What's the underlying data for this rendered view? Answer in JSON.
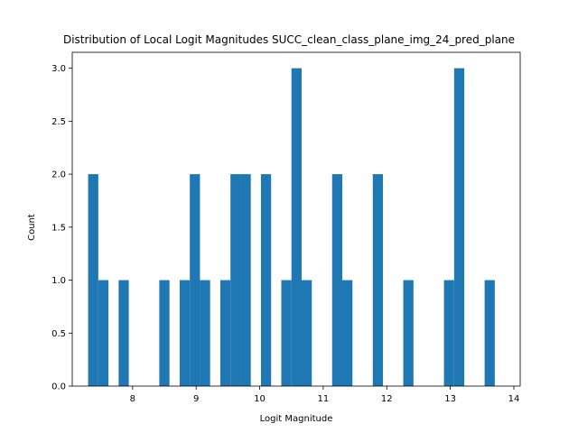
{
  "chart_data": {
    "type": "bar",
    "title": "Distribution of Local Logit Magnitudes SUCC_clean_class_plane_img_24_pred_plane",
    "xlabel": "Logit Magnitude",
    "ylabel": "Count",
    "xlim": [
      7.05,
      14.1
    ],
    "ylim": [
      0,
      3.15
    ],
    "grid": false,
    "color": "#1f77b4",
    "bin_width": 0.16,
    "bins": [
      {
        "x": 7.38,
        "count": 2
      },
      {
        "x": 7.54,
        "count": 1
      },
      {
        "x": 7.86,
        "count": 1
      },
      {
        "x": 8.5,
        "count": 1
      },
      {
        "x": 8.82,
        "count": 1
      },
      {
        "x": 8.98,
        "count": 2
      },
      {
        "x": 9.14,
        "count": 1
      },
      {
        "x": 9.46,
        "count": 1
      },
      {
        "x": 9.62,
        "count": 2
      },
      {
        "x": 9.78,
        "count": 2
      },
      {
        "x": 10.1,
        "count": 2
      },
      {
        "x": 10.42,
        "count": 1
      },
      {
        "x": 10.58,
        "count": 3
      },
      {
        "x": 10.74,
        "count": 1
      },
      {
        "x": 11.22,
        "count": 2
      },
      {
        "x": 11.38,
        "count": 1
      },
      {
        "x": 11.86,
        "count": 2
      },
      {
        "x": 12.34,
        "count": 1
      },
      {
        "x": 12.98,
        "count": 1
      },
      {
        "x": 13.14,
        "count": 3
      },
      {
        "x": 13.62,
        "count": 1
      }
    ],
    "xticks": [
      8,
      9,
      10,
      11,
      12,
      13,
      14
    ],
    "xtick_labels": [
      "8",
      "9",
      "10",
      "11",
      "12",
      "13",
      "14"
    ],
    "yticks": [
      0.0,
      0.5,
      1.0,
      1.5,
      2.0,
      2.5,
      3.0
    ],
    "ytick_labels": [
      "0.0",
      "0.5",
      "1.0",
      "1.5",
      "2.0",
      "2.5",
      "3.0"
    ]
  }
}
